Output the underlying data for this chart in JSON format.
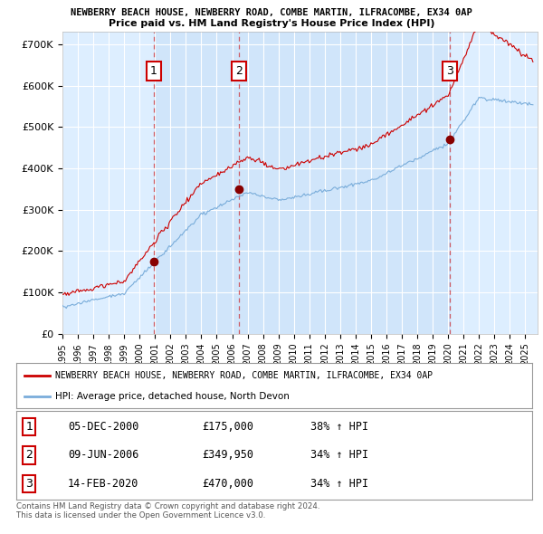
{
  "title1": "NEWBERRY BEACH HOUSE, NEWBERRY ROAD, COMBE MARTIN, ILFRACOMBE, EX34 0AP",
  "title2": "Price paid vs. HM Land Registry's House Price Index (HPI)",
  "ylabel_ticks": [
    "£0",
    "£100K",
    "£200K",
    "£300K",
    "£400K",
    "£500K",
    "£600K",
    "£700K"
  ],
  "ytick_values": [
    0,
    100000,
    200000,
    300000,
    400000,
    500000,
    600000,
    700000
  ],
  "ylim": [
    0,
    730000
  ],
  "xlim_start": 1995.0,
  "xlim_end": 2025.8,
  "plot_bg_color": "#ddeeff",
  "shade_color": "#cce0f5",
  "grid_color": "#ffffff",
  "legend_label_red": "NEWBERRY BEACH HOUSE, NEWBERRY ROAD, COMBE MARTIN, ILFRACOMBE, EX34 0AP",
  "legend_label_blue": "HPI: Average price, detached house, North Devon",
  "purchase_dates": [
    2000.92,
    2006.44,
    2020.12
  ],
  "purchase_prices": [
    175000,
    349950,
    470000
  ],
  "purchase_labels": [
    "1",
    "2",
    "3"
  ],
  "purchase_date_strings": [
    "05-DEC-2000",
    "09-JUN-2006",
    "14-FEB-2020"
  ],
  "purchase_price_strings": [
    "£175,000",
    "£349,950",
    "£470,000"
  ],
  "purchase_hpi_strings": [
    "38% ↑ HPI",
    "34% ↑ HPI",
    "34% ↑ HPI"
  ],
  "footer_text": "Contains HM Land Registry data © Crown copyright and database right 2024.\nThis data is licensed under the Open Government Licence v3.0.",
  "red_color": "#cc0000",
  "blue_color": "#7aadda",
  "dot_color": "#880000"
}
